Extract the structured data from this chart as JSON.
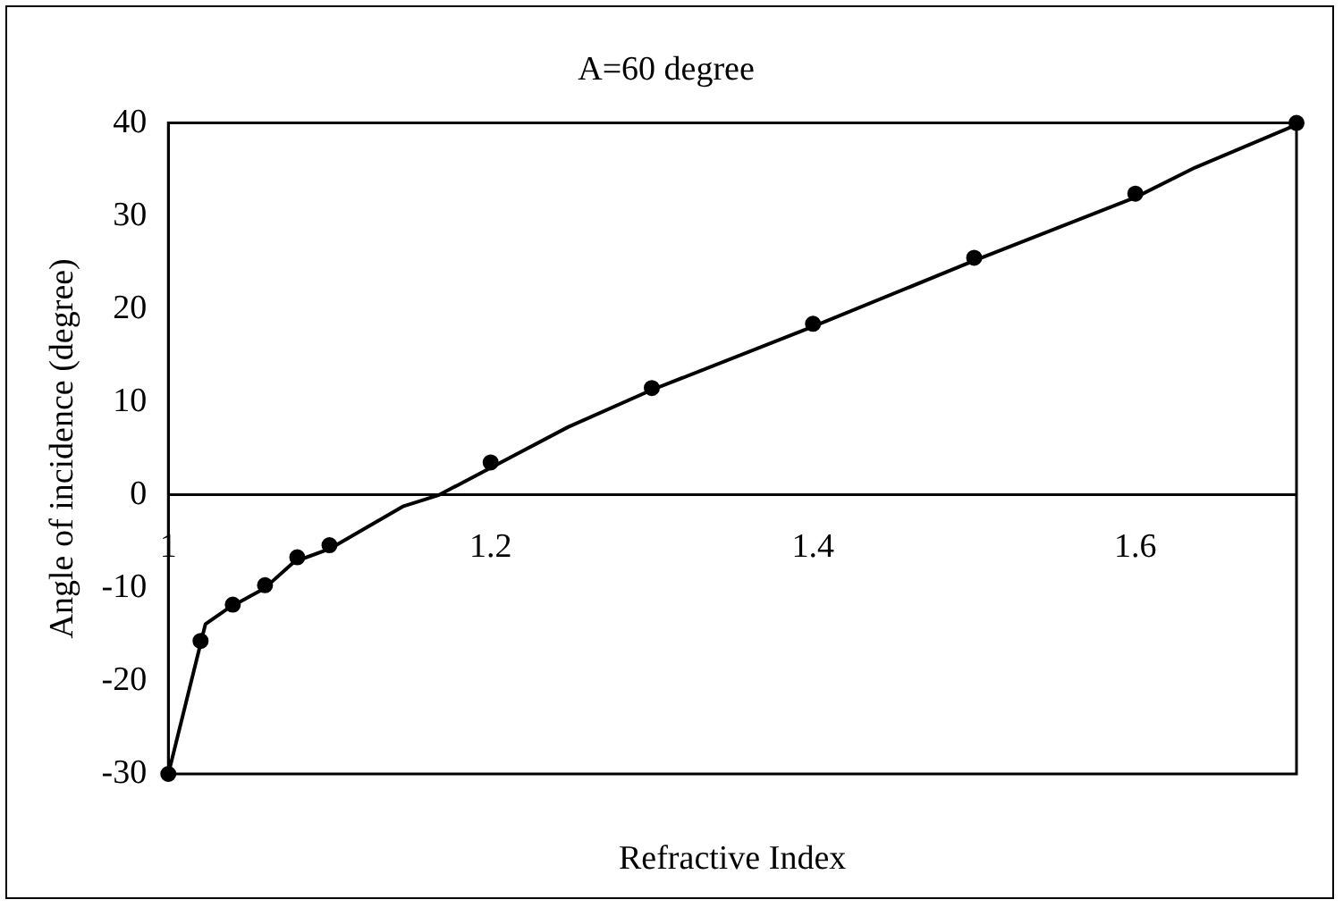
{
  "chart_data": {
    "type": "scatter",
    "title": "A=60 degree",
    "xlabel": "Refractive Index",
    "ylabel": "Angle of incidence (degree)",
    "xlim": [
      1,
      1.7
    ],
    "xticks": [
      1,
      1.2,
      1.4,
      1.6
    ],
    "ylim": [
      -30,
      40
    ],
    "yticks": [
      -30,
      -20,
      -10,
      0,
      10,
      20,
      30,
      40
    ],
    "grid": false,
    "legend": false,
    "marker": "circle",
    "series": [
      {
        "color": "#000000",
        "x": [
          1.0,
          1.02,
          1.04,
          1.06,
          1.08,
          1.1,
          1.2,
          1.3,
          1.4,
          1.5,
          1.6,
          1.7
        ],
        "values": [
          -30,
          -15.7,
          -11.8,
          -9.7,
          -6.7,
          -5.4,
          3.5,
          11.5,
          18.4,
          25.5,
          32.4,
          40
        ]
      },
      {
        "type": "line",
        "color": "#000000",
        "marker": "none",
        "line_style": "solid",
        "x": [
          1.0,
          1.023,
          1.037,
          1.06,
          1.078,
          1.1,
          1.146,
          1.168,
          1.248,
          1.3,
          1.4,
          1.5,
          1.6,
          1.637,
          1.7
        ],
        "values": [
          -30,
          -13.9,
          -12.2,
          -10,
          -7.2,
          -5.8,
          -1.2,
          0,
          7.3,
          11.3,
          18.1,
          25.2,
          32,
          35.2,
          39.8
        ]
      }
    ]
  }
}
